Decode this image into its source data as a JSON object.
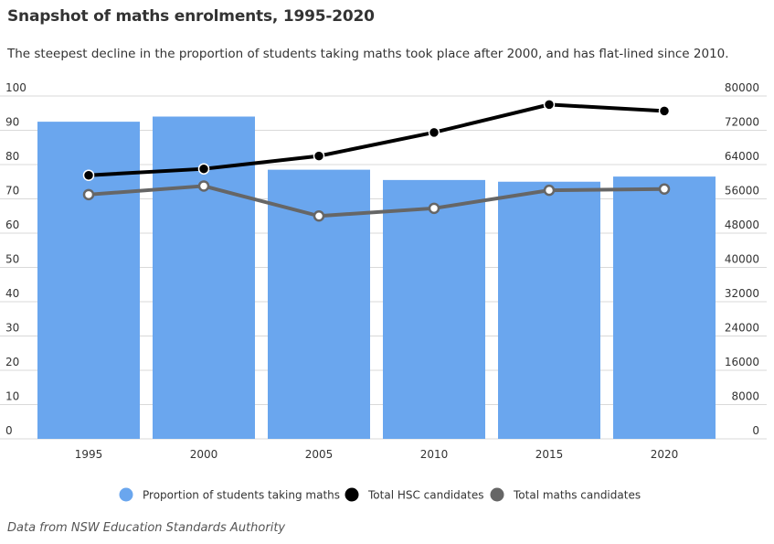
{
  "chart_data": {
    "type": "bar",
    "title": "Snapshot of maths enrolments, 1995-2020",
    "subtitle": "The steepest decline in the proportion of students taking maths took place after 2000, and has flat-lined since 2010.",
    "source": "Data from NSW Education Standards Authority",
    "categories": [
      "1995",
      "2000",
      "2005",
      "2010",
      "2015",
      "2020"
    ],
    "series": [
      {
        "name": "Proportion of students taking maths",
        "kind": "bar",
        "axis": "left",
        "color": "#6aa6ee",
        "values": [
          92.5,
          94,
          78.5,
          75.5,
          75,
          76.5
        ]
      },
      {
        "name": "Total HSC candidates",
        "kind": "line",
        "axis": "right",
        "color": "#000000",
        "values": [
          61500,
          63000,
          66000,
          71500,
          78000,
          76500
        ]
      },
      {
        "name": "Total maths candidates",
        "kind": "line",
        "axis": "right",
        "color": "#666666",
        "values": [
          57000,
          59000,
          52000,
          53800,
          58000,
          58300
        ]
      }
    ],
    "left_axis": {
      "ticks": [
        "0",
        "10",
        "20",
        "30",
        "40",
        "50",
        "60",
        "70",
        "80",
        "90",
        "100"
      ],
      "ylim": [
        0,
        100
      ]
    },
    "right_axis": {
      "ticks": [
        "0",
        "8000",
        "16000",
        "24000",
        "32000",
        "40000",
        "48000",
        "56000",
        "64000",
        "72000",
        "80000"
      ],
      "ylim": [
        0,
        80000
      ]
    },
    "grid": true,
    "legend_position": "bottom"
  }
}
